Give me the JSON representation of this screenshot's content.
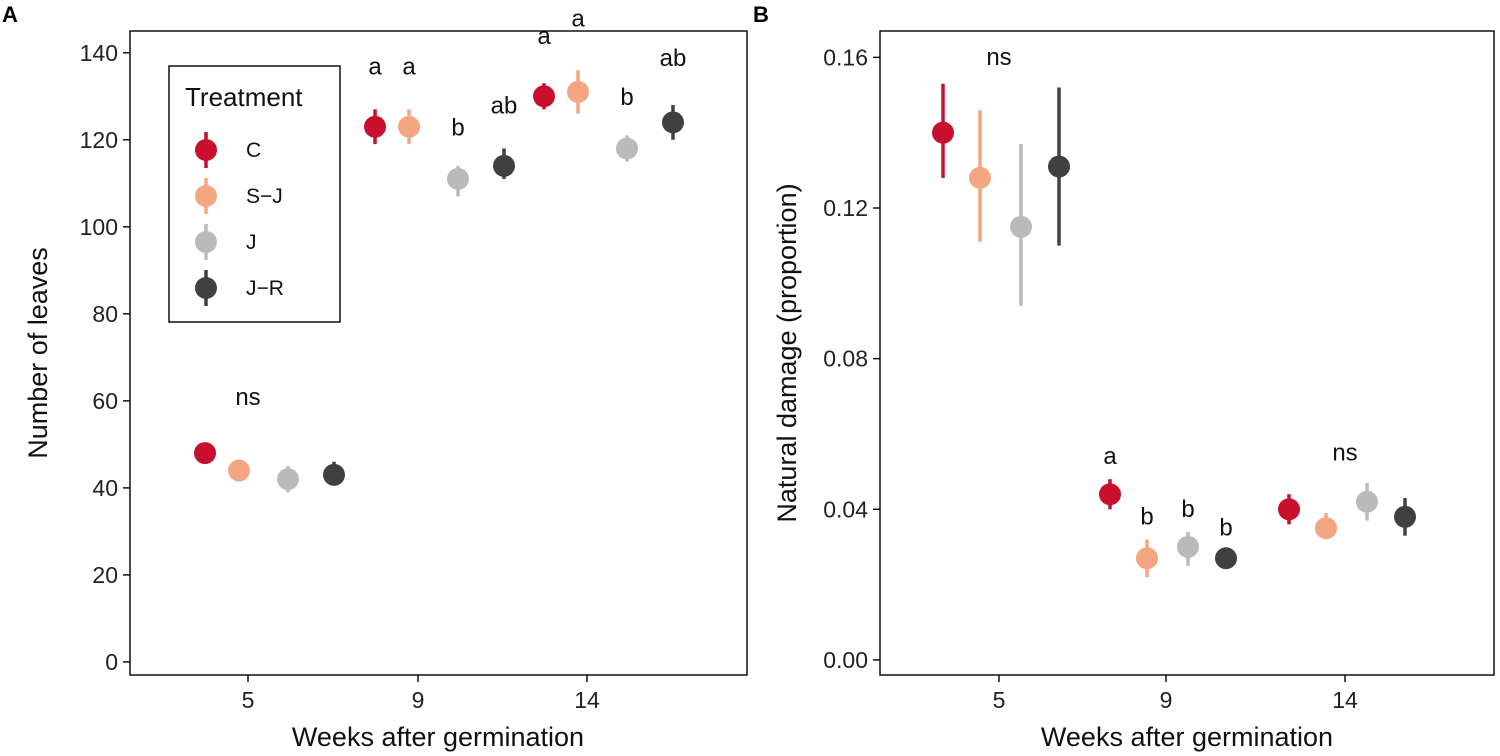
{
  "chart_data": [
    {
      "panel": "A",
      "type": "scatter",
      "xlabel": "Weeks after germination",
      "ylabel": "Number of leaves",
      "categories": [
        "5",
        "9",
        "14"
      ],
      "ylim": [
        -3,
        145
      ],
      "yticks": [
        0,
        20,
        40,
        60,
        80,
        100,
        120,
        140
      ],
      "legend": {
        "title": "Treatment",
        "placement": "top-left"
      },
      "series": [
        {
          "name": "C",
          "color": "#c8102e",
          "values": [
            48,
            123,
            130
          ],
          "lower": [
            46,
            119,
            127
          ],
          "upper": [
            50,
            127,
            133
          ]
        },
        {
          "name": "S−J",
          "color": "#f4a582",
          "values": [
            44,
            123,
            131
          ],
          "lower": [
            43,
            119,
            126
          ],
          "upper": [
            46,
            127,
            136
          ]
        },
        {
          "name": "J",
          "color": "#bababa",
          "values": [
            42,
            111,
            118
          ],
          "lower": [
            39,
            107,
            115
          ],
          "upper": [
            45,
            114,
            121
          ]
        },
        {
          "name": "J−R",
          "color": "#404040",
          "values": [
            43,
            114,
            124
          ],
          "lower": [
            41,
            111,
            120
          ],
          "upper": [
            46,
            118,
            128
          ]
        }
      ],
      "annotations": [
        {
          "text": "ns",
          "category": 0,
          "y": 59
        },
        {
          "text": "a",
          "category": 1,
          "series": 0,
          "y": 135
        },
        {
          "text": "a",
          "category": 1,
          "series": 1,
          "y": 135
        },
        {
          "text": "b",
          "category": 1,
          "series": 2,
          "y": 121
        },
        {
          "text": "ab",
          "category": 1,
          "series": 3,
          "y": 126
        },
        {
          "text": "a",
          "category": 2,
          "series": 0,
          "y": 142
        },
        {
          "text": "a",
          "category": 2,
          "series": 1,
          "y": 146
        },
        {
          "text": "b",
          "category": 2,
          "series": 2,
          "y": 128
        },
        {
          "text": "ab",
          "category": 2,
          "series": 3,
          "y": 137
        }
      ]
    },
    {
      "panel": "B",
      "type": "scatter",
      "xlabel": "Weeks after germination",
      "ylabel": "Natural damage (proportion)",
      "categories": [
        "5",
        "9",
        "14"
      ],
      "ylim": [
        -0.004,
        0.167
      ],
      "yticks": [
        0.0,
        0.04,
        0.08,
        0.12,
        0.16
      ],
      "ytick_labels": [
        "0.00",
        "0.04",
        "0.08",
        "0.12",
        "0.16"
      ],
      "series": [
        {
          "name": "C",
          "color": "#c8102e",
          "values": [
            0.14,
            0.044,
            0.04
          ],
          "lower": [
            0.128,
            0.04,
            0.036
          ],
          "upper": [
            0.153,
            0.048,
            0.044
          ]
        },
        {
          "name": "S−J",
          "color": "#f4a582",
          "values": [
            0.128,
            0.027,
            0.035
          ],
          "lower": [
            0.111,
            0.022,
            0.032
          ],
          "upper": [
            0.146,
            0.032,
            0.039
          ]
        },
        {
          "name": "J",
          "color": "#bababa",
          "values": [
            0.115,
            0.03,
            0.042
          ],
          "lower": [
            0.094,
            0.025,
            0.037
          ],
          "upper": [
            0.137,
            0.034,
            0.047
          ]
        },
        {
          "name": "J−R",
          "color": "#404040",
          "values": [
            0.131,
            0.027,
            0.038
          ],
          "lower": [
            0.11,
            0.025,
            0.033
          ],
          "upper": [
            0.152,
            0.029,
            0.043
          ]
        }
      ],
      "annotations": [
        {
          "text": "ns",
          "category": 0,
          "y": 0.158
        },
        {
          "text": "a",
          "category": 1,
          "series": 0,
          "y": 0.052
        },
        {
          "text": "b",
          "category": 1,
          "series": 1,
          "y": 0.036
        },
        {
          "text": "b",
          "category": 1,
          "series": 2,
          "y": 0.038
        },
        {
          "text": "b",
          "category": 1,
          "series": 3,
          "y": 0.033
        },
        {
          "text": "ns",
          "category": 2,
          "y": 0.053
        }
      ]
    }
  ]
}
